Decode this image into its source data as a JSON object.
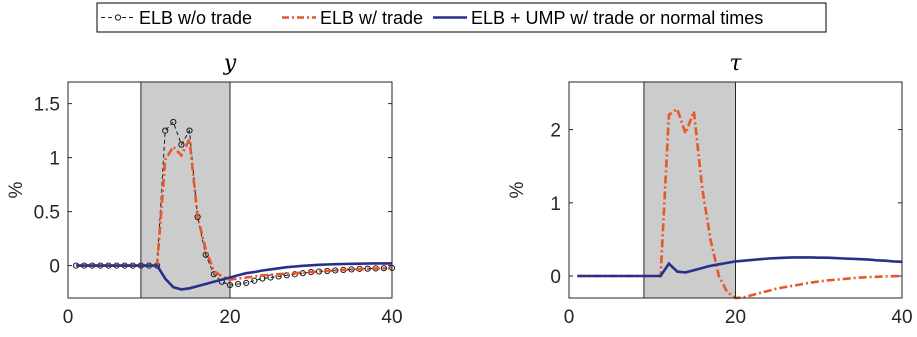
{
  "legend": [
    {
      "label": "ELB w/o trade",
      "color": "#1a1a1a",
      "style": "dash-circle"
    },
    {
      "label": "ELB w/ trade",
      "color": "#e8562a",
      "style": "dash-dot"
    },
    {
      "label": "ELB + UMP w/ trade or normal times",
      "color": "#2a2f8c",
      "style": "solid"
    }
  ],
  "chart_data": [
    {
      "type": "line",
      "title": "y",
      "ylabel": "%",
      "xlim": [
        0,
        40
      ],
      "ylim": [
        -0.3,
        1.7
      ],
      "xticks": [
        0,
        20,
        40
      ],
      "yticks": [
        0,
        0.5,
        1,
        1.5
      ],
      "shaded_region": [
        9,
        20
      ],
      "x": [
        1,
        2,
        3,
        4,
        5,
        6,
        7,
        8,
        9,
        10,
        11,
        12,
        13,
        14,
        15,
        16,
        17,
        18,
        19,
        20,
        21,
        22,
        23,
        24,
        25,
        26,
        27,
        28,
        29,
        30,
        31,
        32,
        33,
        34,
        35,
        36,
        37,
        38,
        39,
        40
      ],
      "series": [
        {
          "name": "ELB w/o trade",
          "color": "#1a1a1a",
          "values": [
            0,
            0,
            0,
            0,
            0,
            0,
            0,
            0,
            0,
            0,
            0,
            1.25,
            1.33,
            1.12,
            1.25,
            0.45,
            0.1,
            -0.08,
            -0.15,
            -0.18,
            -0.17,
            -0.16,
            -0.14,
            -0.12,
            -0.11,
            -0.1,
            -0.09,
            -0.08,
            -0.07,
            -0.06,
            -0.055,
            -0.05,
            -0.045,
            -0.04,
            -0.035,
            -0.03,
            -0.028,
            -0.026,
            -0.024,
            -0.022
          ]
        },
        {
          "name": "ELB w/ trade",
          "color": "#e8562a",
          "values": [
            0,
            0,
            0,
            0,
            0,
            0,
            0,
            0,
            0,
            0,
            0,
            0.98,
            1.1,
            1.02,
            1.17,
            0.45,
            0.15,
            -0.05,
            -0.1,
            -0.13,
            -0.12,
            -0.11,
            -0.1,
            -0.09,
            -0.085,
            -0.08,
            -0.075,
            -0.07,
            -0.065,
            -0.06,
            -0.055,
            -0.05,
            -0.045,
            -0.04,
            -0.036,
            -0.033,
            -0.03,
            -0.028,
            -0.026,
            -0.025
          ]
        },
        {
          "name": "ELB + UMP w/ trade or normal times",
          "color": "#2a2f8c",
          "values": [
            0,
            0,
            0,
            0,
            0,
            0,
            0,
            0,
            0,
            0,
            0,
            -0.12,
            -0.2,
            -0.22,
            -0.21,
            -0.19,
            -0.17,
            -0.15,
            -0.13,
            -0.11,
            -0.09,
            -0.07,
            -0.06,
            -0.045,
            -0.035,
            -0.025,
            -0.015,
            -0.008,
            -0.002,
            0.003,
            0.007,
            0.01,
            0.013,
            0.015,
            0.017,
            0.018,
            0.019,
            0.02,
            0.02,
            0.02
          ]
        }
      ]
    },
    {
      "type": "line",
      "title": "τ",
      "ylabel": "%",
      "xlim": [
        0,
        40
      ],
      "ylim": [
        -0.3,
        2.65
      ],
      "xticks": [
        0,
        20,
        40
      ],
      "yticks": [
        0,
        1,
        2
      ],
      "shaded_region": [
        9,
        20
      ],
      "x": [
        1,
        2,
        3,
        4,
        5,
        6,
        7,
        8,
        9,
        10,
        11,
        12,
        13,
        14,
        15,
        16,
        17,
        18,
        19,
        20,
        21,
        22,
        23,
        24,
        25,
        26,
        27,
        28,
        29,
        30,
        31,
        32,
        33,
        34,
        35,
        36,
        37,
        38,
        39,
        40
      ],
      "series": [
        {
          "name": "ELB w/ trade",
          "color": "#e8562a",
          "values": [
            0,
            0,
            0,
            0,
            0,
            0,
            0,
            0,
            0,
            0,
            0,
            2.2,
            2.28,
            1.95,
            2.25,
            1.2,
            0.5,
            0.0,
            -0.22,
            -0.3,
            -0.29,
            -0.26,
            -0.23,
            -0.2,
            -0.17,
            -0.15,
            -0.13,
            -0.11,
            -0.09,
            -0.075,
            -0.06,
            -0.05,
            -0.04,
            -0.03,
            -0.022,
            -0.015,
            -0.01,
            -0.005,
            -0.002,
            0
          ]
        },
        {
          "name": "ELB + UMP w/ trade or normal times",
          "color": "#2a2f8c",
          "values": [
            0,
            0,
            0,
            0,
            0,
            0,
            0,
            0,
            0,
            0,
            0,
            0.17,
            0.06,
            0.05,
            0.08,
            0.11,
            0.14,
            0.16,
            0.18,
            0.2,
            0.21,
            0.22,
            0.23,
            0.24,
            0.245,
            0.25,
            0.255,
            0.255,
            0.255,
            0.25,
            0.25,
            0.245,
            0.24,
            0.235,
            0.23,
            0.225,
            0.215,
            0.21,
            0.2,
            0.195
          ]
        }
      ]
    }
  ]
}
